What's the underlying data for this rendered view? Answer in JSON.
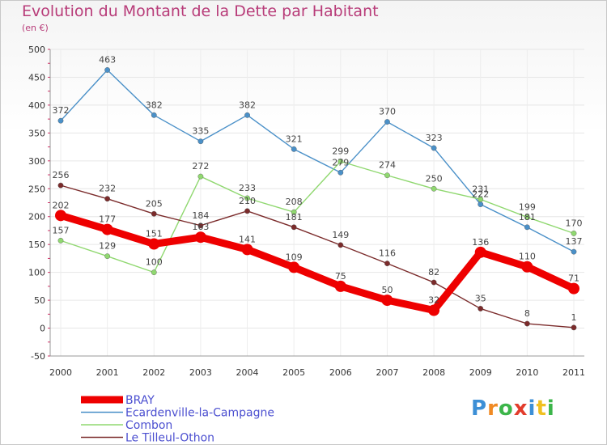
{
  "chart_data": {
    "type": "line",
    "title": "Evolution du Montant de la Dette par Habitant",
    "subtitle": "(en €)",
    "xlabel": "",
    "ylabel": "",
    "x": [
      "2000",
      "2001",
      "2002",
      "2003",
      "2004",
      "2005",
      "2006",
      "2007",
      "2008",
      "2009",
      "2010",
      "2011"
    ],
    "ylim": [
      -50,
      500
    ],
    "yticks": [
      -50,
      0,
      50,
      100,
      150,
      200,
      250,
      300,
      350,
      400,
      450,
      500
    ],
    "grid": true,
    "legend": "bottom-left",
    "series": [
      {
        "name": "BRAY",
        "color": "#ee0000",
        "values": [
          202,
          177,
          151,
          163,
          141,
          109,
          75,
          50,
          32,
          136,
          110,
          71
        ]
      },
      {
        "name": "Ecardenville-la-Campagne",
        "color": "#4a90c8",
        "values": [
          372,
          463,
          382,
          335,
          382,
          321,
          279,
          370,
          323,
          222,
          181,
          137
        ]
      },
      {
        "name": "Combon",
        "color": "#90d870",
        "values": [
          157,
          129,
          100,
          272,
          233,
          208,
          299,
          274,
          250,
          231,
          199,
          170
        ]
      },
      {
        "name": "Le Tilleul-Othon",
        "color": "#7b2b2b",
        "values": [
          256,
          232,
          205,
          184,
          210,
          181,
          149,
          116,
          82,
          35,
          8,
          1
        ]
      }
    ]
  },
  "logo": {
    "letters": [
      "P",
      "r",
      "o",
      "x",
      "i",
      "t",
      "i"
    ],
    "colors": [
      "#3c8fd6",
      "#f08a24",
      "#3cb54a",
      "#e23c2c",
      "#3c8fd6",
      "#f0c020",
      "#3cb54a"
    ]
  }
}
